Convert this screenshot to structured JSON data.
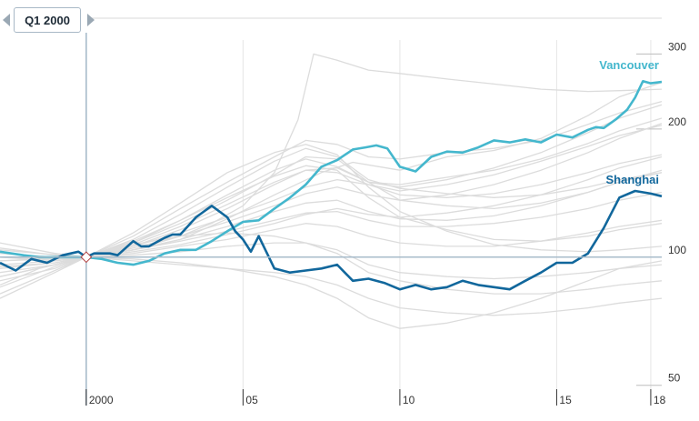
{
  "slider": {
    "label": "Q1 2000",
    "prev_icon": "triangle-left-icon",
    "next_icon": "triangle-right-icon"
  },
  "colors": {
    "background_series": "#dcdcdc",
    "vancouver": "#44b7cd",
    "shanghai": "#11679c",
    "baseline": "#a8bccb",
    "grid": "#e6e6e6",
    "marker_line": "#a8bccb"
  },
  "chart_data": {
    "type": "line",
    "title": "",
    "xlabel": "",
    "ylabel": "",
    "y_scale": "log",
    "ylim": [
      48,
      330
    ],
    "xlim": [
      1997.25,
      2018.35
    ],
    "grid": true,
    "x_tick_labels": [
      {
        "x": 2000,
        "label": "2000"
      },
      {
        "x": 2005,
        "label": "05"
      },
      {
        "x": 2010,
        "label": "10"
      },
      {
        "x": 2015,
        "label": "15"
      },
      {
        "x": 2018,
        "label": "18"
      }
    ],
    "y_tick_labels": [
      {
        "y": 300,
        "label": "300"
      },
      {
        "y": 200,
        "label": "200"
      },
      {
        "y": 100,
        "label": "100"
      },
      {
        "y": 50,
        "label": "50"
      }
    ],
    "selected_period": {
      "x": 2000.0,
      "y": 100
    },
    "series": [
      {
        "name": "Vancouver",
        "highlight": true,
        "x": [
          1997.25,
          1998.0,
          1998.5,
          1999.0,
          1999.5,
          2000.0,
          2000.5,
          2001.0,
          2001.5,
          2002.0,
          2002.5,
          2003.0,
          2003.5,
          2004.0,
          2004.5,
          2005.0,
          2005.5,
          2006.0,
          2006.5,
          2007.0,
          2007.5,
          2008.0,
          2008.5,
          2008.9,
          2009.25,
          2009.6,
          2010.0,
          2010.5,
          2011.0,
          2011.5,
          2012.0,
          2012.5,
          2013.0,
          2013.5,
          2014.0,
          2014.5,
          2015.0,
          2015.5,
          2016.0,
          2016.25,
          2016.5,
          2016.9,
          2017.25,
          2017.5,
          2017.75,
          2018.0,
          2018.35
        ],
        "values": [
          103,
          101,
          100,
          100,
          100,
          100,
          99,
          97,
          96,
          98,
          102,
          104,
          104,
          109,
          115,
          121,
          122,
          130,
          138,
          148,
          163,
          169,
          179,
          181,
          183,
          180,
          163,
          159,
          172,
          177,
          176,
          181,
          188,
          186,
          189,
          186,
          194,
          191,
          199,
          202,
          201,
          211,
          222,
          237,
          259,
          256,
          258
        ]
      },
      {
        "name": "Shanghai",
        "highlight": true,
        "x": [
          1997.25,
          1997.75,
          1998.25,
          1998.75,
          1999.25,
          1999.75,
          2000.0,
          2000.25,
          2000.75,
          2001.0,
          2001.5,
          2001.75,
          2002.0,
          2002.5,
          2002.75,
          2003.0,
          2003.5,
          2004.0,
          2004.5,
          2004.75,
          2005.0,
          2005.25,
          2005.5,
          2006.0,
          2006.5,
          2007.0,
          2007.5,
          2008.0,
          2008.5,
          2009.0,
          2009.5,
          2010.0,
          2010.5,
          2011.0,
          2011.5,
          2012.0,
          2012.5,
          2013.0,
          2013.5,
          2014.0,
          2014.5,
          2015.0,
          2015.5,
          2016.0,
          2016.5,
          2017.0,
          2017.5,
          2018.0,
          2018.35
        ],
        "values": [
          97,
          93,
          99,
          97,
          101,
          103,
          100,
          102,
          102,
          101,
          109,
          106,
          106,
          111,
          113,
          113,
          124,
          132,
          124,
          115,
          110,
          103,
          112,
          94,
          92,
          93,
          94,
          96,
          88,
          89,
          87,
          84,
          86,
          84,
          85,
          88,
          86,
          85,
          84,
          88,
          92,
          97,
          97,
          102,
          117,
          138,
          143,
          141,
          139
        ]
      },
      {
        "name": "",
        "x": [
          1997.25,
          1999.0,
          2000.0,
          2001.5,
          2003.0,
          2004.5,
          2006.0,
          2007.5,
          2008.5,
          2010.0,
          2011.5,
          2013.0,
          2014.5,
          2016.0,
          2017.0,
          2018.35
        ],
        "values": [
          90,
          96,
          100,
          104,
          110,
          123,
          140,
          158,
          167,
          160,
          172,
          178,
          190,
          215,
          238,
          257
        ]
      },
      {
        "name": "",
        "x": [
          1997.25,
          1999.0,
          2000.0,
          2001.5,
          2003.0,
          2004.5,
          2006.0,
          2007.0,
          2008.0,
          2009.0,
          2010.0,
          2011.5,
          2013.0,
          2014.5,
          2016.0,
          2017.0,
          2018.35
        ],
        "values": [
          80,
          92,
          100,
          112,
          130,
          150,
          172,
          188,
          184,
          172,
          170,
          176,
          180,
          188,
          205,
          218,
          232
        ]
      },
      {
        "name": "",
        "x": [
          1997.25,
          1999.0,
          2000.0,
          2001.5,
          2003.0,
          2004.5,
          2006.0,
          2007.0,
          2008.0,
          2009.0,
          2010.0,
          2011.5,
          2013.0,
          2014.5,
          2016.0,
          2017.0,
          2018.35
        ],
        "values": [
          95,
          97,
          100,
          108,
          122,
          140,
          160,
          170,
          163,
          150,
          148,
          154,
          160,
          170,
          185,
          198,
          212
        ]
      },
      {
        "name": "",
        "x": [
          1997.25,
          1999.0,
          2000.0,
          2001.5,
          2003.0,
          2004.5,
          2006.0,
          2007.0,
          2008.0,
          2009.0,
          2010.0,
          2011.5,
          2013.0,
          2014.5,
          2016.0,
          2017.0,
          2018.35
        ],
        "values": [
          100,
          98,
          100,
          107,
          118,
          133,
          150,
          160,
          158,
          148,
          140,
          138,
          141,
          148,
          158,
          166,
          174
        ]
      },
      {
        "name": "",
        "x": [
          1997.25,
          1999.0,
          2000.0,
          2001.5,
          2003.0,
          2004.5,
          2006.0,
          2007.0,
          2008.0,
          2009.0,
          2010.0,
          2011.5,
          2013.0,
          2014.5,
          2016.0,
          2017.0,
          2018.35
        ],
        "values": [
          85,
          95,
          100,
          110,
          126,
          146,
          168,
          180,
          172,
          152,
          145,
          141,
          138,
          140,
          146,
          152,
          158
        ]
      },
      {
        "name": "",
        "x": [
          1997.25,
          1999.0,
          2000.0,
          2001.5,
          2003.0,
          2004.5,
          2006.0,
          2007.0,
          2008.0,
          2009.0,
          2010.0,
          2011.5,
          2013.0,
          2014.5,
          2016.0,
          2017.0,
          2018.35
        ],
        "values": [
          92,
          96,
          100,
          106,
          114,
          124,
          136,
          146,
          152,
          148,
          143,
          148,
          156,
          168,
          182,
          193,
          204
        ]
      },
      {
        "name": "",
        "x": [
          1997.25,
          1999.0,
          2000.0,
          2001.5,
          2003.0,
          2004.5,
          2006.0,
          2007.0,
          2008.0,
          2009.0,
          2010.0,
          2011.5,
          2013.0,
          2014.5,
          2016.0,
          2017.0,
          2018.35
        ],
        "values": [
          98,
          99,
          100,
          104,
          110,
          118,
          128,
          134,
          136,
          128,
          123,
          122,
          125,
          132,
          142,
          150,
          158
        ]
      },
      {
        "name": "",
        "x": [
          1997.25,
          1999.0,
          2000.0,
          2001.5,
          2003.0,
          2004.5,
          2006.0,
          2007.0,
          2008.0,
          2009.0,
          2010.0,
          2011.5,
          2013.0,
          2014.5,
          2016.0,
          2017.0,
          2018.35
        ],
        "values": [
          88,
          94,
          100,
          109,
          122,
          138,
          155,
          164,
          160,
          138,
          124,
          116,
          110,
          109,
          112,
          116,
          120
        ]
      },
      {
        "name": "",
        "x": [
          1997.25,
          1999.0,
          2000.0,
          2001.5,
          2003.0,
          2004.5,
          2006.0,
          2007.0,
          2008.0,
          2009.0,
          2010.0,
          2011.5,
          2013.0,
          2014.5,
          2016.0,
          2017.0,
          2018.35
        ],
        "values": [
          105,
          101,
          100,
          103,
          107,
          113,
          120,
          126,
          130,
          126,
          124,
          127,
          132,
          140,
          152,
          162,
          172
        ]
      },
      {
        "name": "",
        "x": [
          1997.25,
          1999.0,
          2000.0,
          2001.5,
          2003.0,
          2004.5,
          2006.0,
          2007.0,
          2008.0,
          2009.0,
          2010.0,
          2011.5,
          2013.0,
          2014.5,
          2016.0,
          2017.0,
          2018.35
        ],
        "values": [
          82,
          93,
          100,
          114,
          134,
          158,
          176,
          184,
          174,
          146,
          128,
          115,
          107,
          104,
          103,
          104,
          106
        ]
      },
      {
        "name": "",
        "x": [
          1997.25,
          1999.0,
          2000.0,
          2001.5,
          2003.0,
          2004.5,
          2006.0,
          2007.0,
          2008.0,
          2009.0,
          2010.0,
          2011.5,
          2013.0,
          2014.5,
          2016.0,
          2017.0,
          2018.35
        ],
        "values": [
          96,
          98,
          100,
          105,
          112,
          121,
          132,
          141,
          146,
          140,
          136,
          140,
          148,
          160,
          176,
          190,
          206
        ]
      },
      {
        "name": "",
        "x": [
          1997.25,
          1999.0,
          2000.0,
          2001.5,
          2003.0,
          2004.5,
          2006.0,
          2007.0,
          2008.0,
          2009.0,
          2010.0,
          2011.5,
          2013.0,
          2014.5,
          2016.0,
          2017.0,
          2018.35
        ],
        "values": [
          102,
          100,
          100,
          102,
          106,
          110,
          116,
          120,
          118,
          112,
          108,
          106,
          106,
          109,
          114,
          118,
          122
        ]
      },
      {
        "name": "",
        "x": [
          1997.25,
          1999.0,
          2000.0,
          2001.5,
          2003.0,
          2004.5,
          2006.0,
          2007.0,
          2008.0,
          2009.0,
          2010.0,
          2011.5,
          2013.0,
          2014.5,
          2016.0,
          2017.0,
          2018.35
        ],
        "values": [
          90,
          96,
          100,
          108,
          120,
          136,
          156,
          172,
          170,
          150,
          136,
          132,
          130,
          134,
          142,
          150,
          160
        ]
      },
      {
        "name": "",
        "x": [
          1997.25,
          1999.0,
          2000.0,
          2001.5,
          2003.0,
          2004.5,
          2006.0,
          2007.0,
          2008.0,
          2009.0,
          2010.0,
          2011.5,
          2013.0,
          2014.5,
          2016.0,
          2017.0,
          2018.35
        ],
        "values": [
          108,
          102,
          100,
          101,
          103,
          106,
          108,
          108,
          104,
          96,
          92,
          90,
          89,
          90,
          92,
          94,
          96
        ]
      },
      {
        "name": "",
        "x": [
          1997.25,
          1999.0,
          2000.0,
          2001.5,
          2003.0,
          2004.5,
          2006.0,
          2007.0,
          2008.0,
          2009.0,
          2010.0,
          2011.5,
          2013.0,
          2014.5,
          2016.0,
          2017.0,
          2018.35
        ],
        "values": [
          94,
          97,
          100,
          106,
          116,
          130,
          148,
          160,
          162,
          150,
          146,
          152,
          162,
          176,
          196,
          212,
          228
        ]
      },
      {
        "name": "",
        "x": [
          1997.25,
          1999.0,
          2000.0,
          2001.5,
          2003.0,
          2004.5,
          2006.0,
          2007.0,
          2008.0,
          2009.0,
          2010.0,
          2011.5,
          2013.0,
          2014.5,
          2016.0,
          2017.0,
          2018.35
        ],
        "values": [
          100,
          99,
          100,
          104,
          109,
          115,
          122,
          127,
          128,
          122,
          118,
          118,
          120,
          124,
          130,
          136,
          142
        ]
      },
      {
        "name": "",
        "x": [
          1997.25,
          1998.5,
          2000.0,
          2001.5,
          2003.0,
          2004.0,
          2005.0,
          2006.0,
          2006.75,
          2007.25,
          2008.0,
          2009.0,
          2010.0,
          2011.5,
          2013.0,
          2014.5,
          2016.0,
          2017.0,
          2018.35
        ],
        "values": [
          100,
          100,
          100,
          104,
          112,
          120,
          132,
          158,
          210,
          300,
          290,
          275,
          270,
          262,
          255,
          248,
          245,
          246,
          248
        ]
      },
      {
        "name": "",
        "x": [
          1997.25,
          1998.5,
          2000.0,
          2001.5,
          2003.0,
          2004.5,
          2006.0,
          2007.0,
          2008.0,
          2009.0,
          2010.0,
          2011.5,
          2013.0,
          2014.5,
          2016.0,
          2017.0,
          2018.35
        ],
        "values": [
          104,
          102,
          100,
          98,
          96,
          94,
          92,
          90,
          86,
          80,
          76,
          74,
          73,
          74,
          76,
          78,
          80
        ]
      },
      {
        "name": "",
        "x": [
          1997.25,
          1998.5,
          2000.0,
          2001.5,
          2003.0,
          2004.5,
          2006.0,
          2007.0,
          2008.0,
          2009.0,
          2010.0,
          2011.5,
          2013.0,
          2014.5,
          2016.0,
          2017.0,
          2018.35
        ],
        "values": [
          98,
          99,
          100,
          99,
          97,
          94,
          90,
          86,
          80,
          72,
          68,
          70,
          74,
          80,
          88,
          94,
          98
        ]
      },
      {
        "name": "",
        "x": [
          1997.25,
          1998.5,
          2000.0,
          2001.5,
          2003.0,
          2004.5,
          2006.0,
          2007.0,
          2008.0,
          2009.0,
          2010.0,
          2011.5,
          2013.0,
          2014.5,
          2016.0,
          2017.0,
          2018.35
        ],
        "values": [
          86,
          94,
          100,
          107,
          112,
          114,
          112,
          108,
          102,
          92,
          88,
          84,
          82,
          82,
          84,
          86,
          88
        ]
      }
    ]
  }
}
